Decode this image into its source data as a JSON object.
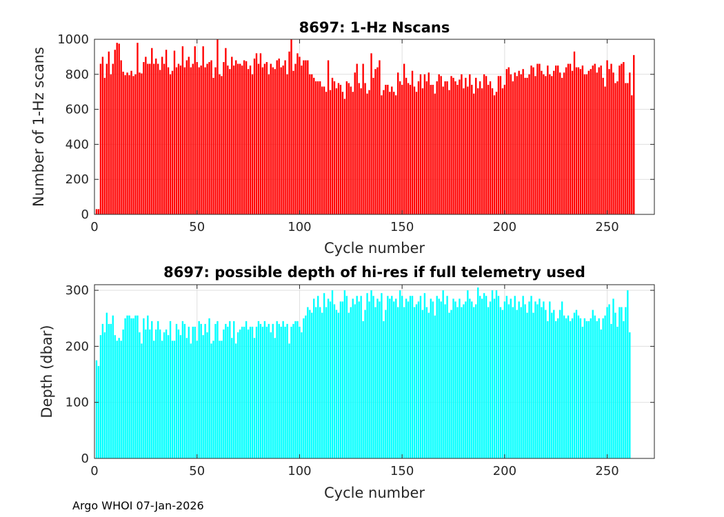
{
  "footer": "Argo WHOI 07-Jan-2026",
  "chart_data": [
    {
      "type": "bar",
      "title": "8697: 1-Hz Nscans",
      "xlabel": "Cycle number",
      "ylabel": "Number of 1-Hz scans",
      "xlim": [
        0,
        273
      ],
      "ylim": [
        0,
        1000
      ],
      "xticks": [
        0,
        50,
        100,
        150,
        200,
        250
      ],
      "yticks": [
        0,
        200,
        400,
        600,
        800,
        1000
      ],
      "grid": true,
      "color": "#ff0000",
      "x_start": 1,
      "values": [
        30,
        30,
        860,
        900,
        780,
        860,
        930,
        800,
        860,
        940,
        980,
        975,
        880,
        815,
        795,
        810,
        795,
        820,
        790,
        800,
        980,
        810,
        805,
        870,
        900,
        860,
        860,
        950,
        860,
        890,
        860,
        825,
        900,
        860,
        940,
        840,
        800,
        820,
        935,
        840,
        860,
        850,
        960,
        840,
        880,
        900,
        840,
        860,
        960,
        870,
        840,
        850,
        960,
        840,
        860,
        870,
        880,
        780,
        840,
        1000,
        800,
        790,
        870,
        950,
        850,
        830,
        900,
        850,
        880,
        860,
        860,
        850,
        880,
        875,
        830,
        850,
        800,
        890,
        920,
        860,
        920,
        840,
        860,
        870,
        800,
        860,
        840,
        830,
        880,
        890,
        840,
        850,
        880,
        800,
        930,
        1000,
        820,
        860,
        920,
        900,
        850,
        880,
        880,
        880,
        800,
        800,
        780,
        760,
        760,
        760,
        730,
        730,
        700,
        880,
        710,
        780,
        760,
        720,
        750,
        740,
        700,
        660,
        760,
        750,
        730,
        700,
        810,
        860,
        750,
        720,
        860,
        750,
        690,
        710,
        920,
        780,
        830,
        840,
        880,
        680,
        710,
        740,
        740,
        700,
        730,
        700,
        680,
        810,
        760,
        740,
        860,
        780,
        750,
        740,
        820,
        730,
        700,
        760,
        800,
        720,
        800,
        760,
        810,
        740,
        740,
        690,
        760,
        800,
        790,
        730,
        760,
        760,
        710,
        790,
        780,
        760,
        740,
        770,
        800,
        720,
        780,
        730,
        800,
        740,
        690,
        780,
        720,
        760,
        720,
        800,
        790,
        740,
        760,
        720,
        680,
        700,
        790,
        790,
        720,
        740,
        830,
        840,
        800,
        760,
        810,
        790,
        820,
        800,
        830,
        780,
        780,
        800,
        850,
        840,
        790,
        860,
        860,
        820,
        800,
        790,
        850,
        800,
        790,
        820,
        850,
        850,
        810,
        780,
        810,
        840,
        860,
        860,
        820,
        930,
        840,
        840,
        830,
        850,
        800,
        800,
        820,
        830,
        850,
        860,
        810,
        840,
        850,
        780,
        730,
        880,
        830,
        860,
        810,
        750,
        760,
        850,
        860,
        870,
        750,
        750,
        810,
        680,
        910
      ]
    },
    {
      "type": "bar",
      "title": "8697: possible depth of hi-res if full telemetry used",
      "xlabel": "Cycle number",
      "ylabel": "Depth (dbar)",
      "xlim": [
        0,
        273
      ],
      "ylim": [
        0,
        310
      ],
      "xticks": [
        0,
        50,
        100,
        150,
        200,
        250
      ],
      "yticks": [
        0,
        100,
        200,
        300
      ],
      "grid": true,
      "color": "#00ffff",
      "x_start": 1,
      "values": [
        175,
        165,
        220,
        240,
        225,
        260,
        240,
        240,
        255,
        220,
        210,
        215,
        210,
        230,
        250,
        255,
        255,
        250,
        250,
        255,
        255,
        225,
        205,
        250,
        230,
        255,
        230,
        245,
        210,
        230,
        245,
        230,
        210,
        225,
        230,
        220,
        245,
        210,
        210,
        240,
        230,
        220,
        245,
        240,
        215,
        235,
        205,
        235,
        235,
        210,
        245,
        240,
        220,
        240,
        225,
        250,
        205,
        210,
        240,
        245,
        210,
        210,
        230,
        240,
        235,
        245,
        215,
        245,
        205,
        225,
        230,
        235,
        235,
        245,
        230,
        235,
        235,
        215,
        235,
        245,
        240,
        235,
        245,
        235,
        240,
        225,
        240,
        215,
        245,
        240,
        235,
        245,
        235,
        240,
        205,
        235,
        240,
        245,
        245,
        235,
        225,
        250,
        255,
        270,
        265,
        260,
        285,
        270,
        290,
        270,
        260,
        295,
        270,
        285,
        280,
        300,
        275,
        265,
        260,
        280,
        280,
        300,
        290,
        260,
        270,
        285,
        275,
        290,
        280,
        290,
        245,
        265,
        295,
        280,
        300,
        290,
        270,
        285,
        280,
        295,
        245,
        265,
        290,
        285,
        290,
        280,
        285,
        270,
        300,
        290,
        270,
        285,
        280,
        290,
        290,
        270,
        275,
        280,
        290,
        265,
        295,
        270,
        260,
        285,
        280,
        255,
        290,
        285,
        280,
        300,
        275,
        290,
        260,
        265,
        285,
        280,
        270,
        285,
        270,
        275,
        280,
        300,
        285,
        280,
        270,
        275,
        305,
        290,
        285,
        295,
        290,
        270,
        280,
        300,
        285,
        300,
        290,
        270,
        265,
        280,
        290,
        275,
        285,
        270,
        290,
        265,
        280,
        270,
        290,
        275,
        260,
        280,
        290,
        260,
        280,
        275,
        285,
        270,
        280,
        265,
        245,
        280,
        260,
        265,
        245,
        250,
        265,
        280,
        255,
        250,
        255,
        245,
        250,
        260,
        265,
        255,
        250,
        235,
        250,
        245,
        245,
        250,
        265,
        255,
        245,
        250,
        230,
        250,
        255,
        270,
        275,
        240,
        285,
        260,
        235,
        270,
        270,
        245,
        270,
        300,
        225
      ]
    }
  ]
}
